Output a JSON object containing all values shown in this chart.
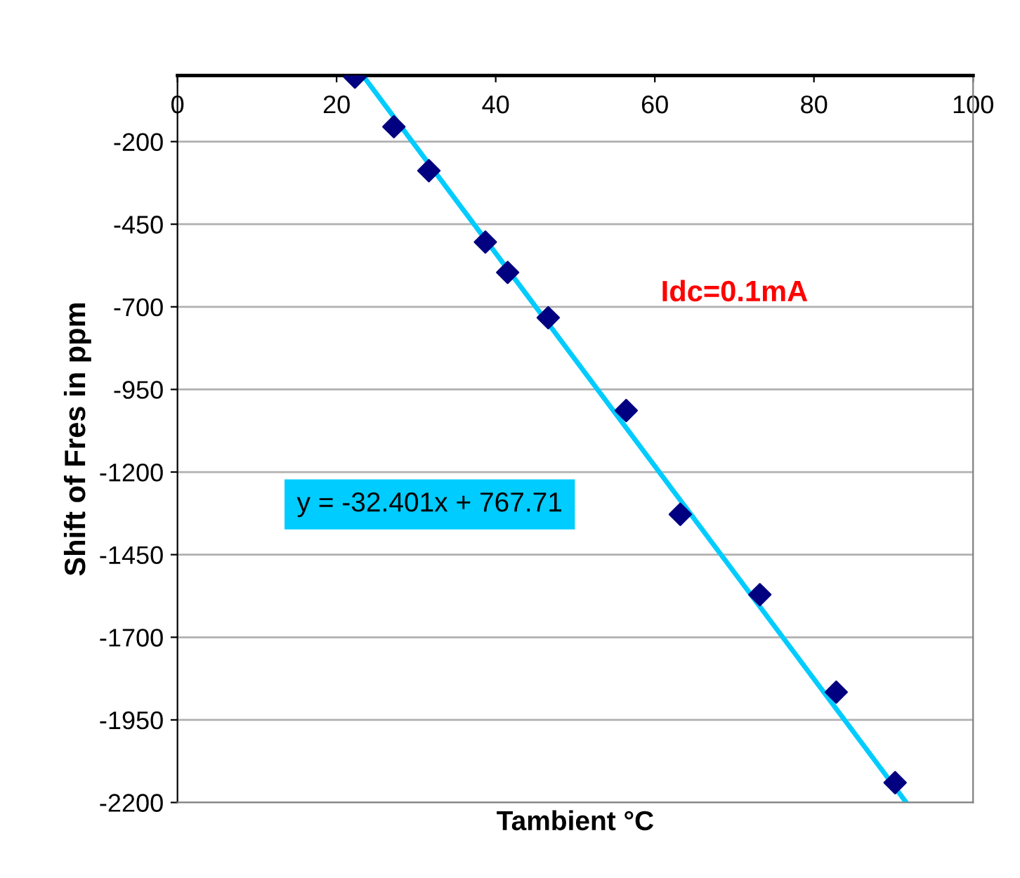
{
  "chart_data": {
    "type": "scatter",
    "xlabel": "Tambient °C",
    "ylabel": "Shift of Fres in ppm",
    "x": [
      22.3,
      27.2,
      31.6,
      38.7,
      41.5,
      46.6,
      56.4,
      63.2,
      73.2,
      82.8,
      90.2
    ],
    "series": [
      {
        "color": "#000080",
        "values": [
          -5,
          -155,
          -288,
          -504,
          -596,
          -733,
          -1014,
          -1328,
          -1571,
          -1866,
          -2140
        ],
        "marker": "diamond"
      },
      {
        "type": "line",
        "color": "#00ccff",
        "x": [
          23.3,
          91.6
        ],
        "values": [
          0,
          -2200
        ],
        "marker": "none"
      }
    ],
    "annotations": [
      "y = -32.401x + 767.71",
      "Idc=0.1mA"
    ],
    "xlim": [
      0,
      100
    ],
    "xticks": [
      0,
      20,
      40,
      60,
      80,
      100
    ],
    "ylim": [
      -2200,
      0
    ],
    "yticks": [
      -200,
      -450,
      -700,
      -950,
      -1200,
      -1450,
      -1700,
      -1950,
      -2200
    ],
    "grid": "y",
    "legend": false
  }
}
